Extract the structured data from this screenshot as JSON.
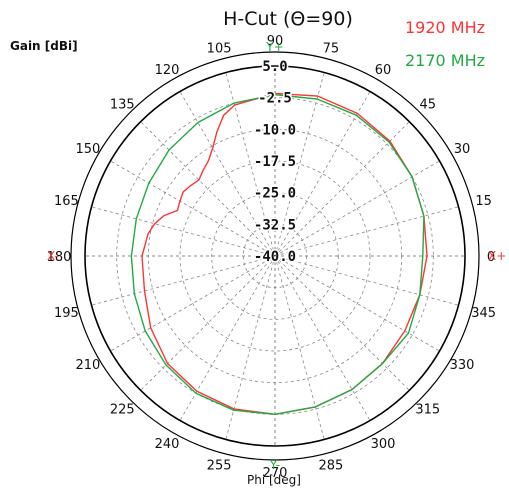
{
  "chart_data": {
    "type": "polar_line",
    "title": "H-Cut (Θ=90)",
    "ylabel": "Gain [dBi]",
    "xlabel": "Phi [deg]",
    "axis_markers": {
      "x_plus": "X+",
      "x_minus": "X-",
      "y_plus": "Y+",
      "y_minus": "Y-"
    },
    "angle_ticks": [
      "0",
      "15",
      "30",
      "45",
      "60",
      "75",
      "90",
      "105",
      "120",
      "135",
      "150",
      "165",
      "180",
      "195",
      "210",
      "225",
      "240",
      "255",
      "270",
      "285",
      "300",
      "315",
      "330",
      "345"
    ],
    "radial_ticks": [
      "5.0",
      "-2.5",
      "-10.0",
      "-17.5",
      "-25.0",
      "-32.5",
      "-40.0"
    ],
    "rlim": [
      -40,
      5
    ],
    "grid": true,
    "legend_position": "top-right",
    "series": [
      {
        "name": "1920  MHz",
        "color": "#ff3333",
        "angles": [
          0,
          15,
          30,
          45,
          60,
          75,
          90,
          105,
          110,
          115,
          120,
          125,
          130,
          135,
          140,
          145,
          150,
          155,
          160,
          165,
          170,
          180,
          195,
          210,
          225,
          240,
          255,
          270,
          285,
          300,
          315,
          330,
          345,
          360
        ],
        "values": [
          -4.0,
          -3.5,
          -2.5,
          -1.5,
          -1.0,
          -0.8,
          -1.5,
          -3.0,
          -4.5,
          -7.5,
          -10.5,
          -12.5,
          -13.5,
          -14.5,
          -14.0,
          -13.5,
          -14.0,
          -14.5,
          -12.0,
          -10.5,
          -9.5,
          -8.5,
          -8.0,
          -6.0,
          -4.0,
          -3.0,
          -2.5,
          -2.5,
          -3.0,
          -3.5,
          -4.0,
          -4.5,
          -4.5,
          -4.0
        ]
      },
      {
        "name": "2170  MHz",
        "color": "#22aa44",
        "angles": [
          0,
          15,
          30,
          45,
          60,
          75,
          90,
          105,
          120,
          135,
          150,
          165,
          180,
          195,
          210,
          225,
          240,
          255,
          270,
          285,
          300,
          315,
          330,
          345,
          360
        ],
        "values": [
          -5.0,
          -3.5,
          -2.5,
          -1.8,
          -1.5,
          -1.5,
          -1.8,
          -2.5,
          -3.5,
          -4.5,
          -5.5,
          -6.0,
          -6.0,
          -5.5,
          -4.5,
          -3.5,
          -2.5,
          -2.2,
          -2.5,
          -3.0,
          -3.5,
          -4.0,
          -3.5,
          -4.5,
          -5.0
        ]
      }
    ]
  }
}
